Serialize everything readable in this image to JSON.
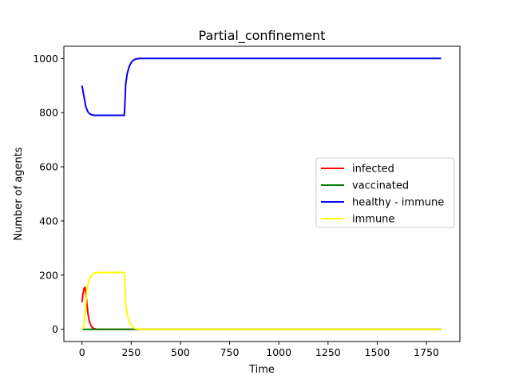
{
  "chart_data": {
    "type": "line",
    "title": "Partial_confinement",
    "xlabel": "Time",
    "ylabel": "Number of agents",
    "xlim": [
      -92,
      1920
    ],
    "ylim": [
      -45,
      1045
    ],
    "xticks": [
      0,
      250,
      500,
      750,
      1000,
      1250,
      1500,
      1750
    ],
    "yticks": [
      0,
      200,
      400,
      600,
      800,
      1000
    ],
    "grid": false,
    "legend": "center-right",
    "series": [
      {
        "name": "infected",
        "color": "#ff0000",
        "x": [
          0,
          5,
          10,
          15,
          20,
          25,
          30,
          35,
          40,
          45,
          50,
          55,
          60,
          70,
          80,
          100,
          150,
          200,
          220,
          250,
          300,
          500,
          1000,
          1500,
          1825
        ],
        "y": [
          100,
          130,
          150,
          155,
          135,
          95,
          60,
          38,
          24,
          15,
          9,
          5,
          3,
          1,
          0,
          0,
          0,
          0,
          0,
          0,
          0,
          0,
          0,
          0,
          0
        ]
      },
      {
        "name": "vaccinated",
        "color": "#008000",
        "x": [
          0,
          1825
        ],
        "y": [
          0,
          0
        ]
      },
      {
        "name": "healthy - immune",
        "color": "#0000ff",
        "x": [
          0,
          10,
          20,
          30,
          40,
          50,
          60,
          80,
          100,
          150,
          200,
          215,
          218,
          222,
          230,
          240,
          250,
          260,
          270,
          280,
          300,
          500,
          1000,
          1500,
          1825
        ],
        "y": [
          900,
          860,
          820,
          803,
          795,
          792,
          790,
          790,
          790,
          790,
          790,
          790,
          830,
          905,
          945,
          970,
          985,
          993,
          997,
          999,
          1000,
          1000,
          1000,
          1000,
          1000
        ]
      },
      {
        "name": "immune",
        "color": "#ffff00",
        "x": [
          0,
          10,
          15,
          20,
          25,
          30,
          40,
          50,
          60,
          70,
          80,
          100,
          150,
          200,
          215,
          218,
          222,
          230,
          240,
          250,
          260,
          270,
          280,
          300,
          500,
          1000,
          1500,
          1825
        ],
        "y": [
          0,
          10,
          50,
          100,
          140,
          165,
          190,
          200,
          206,
          209,
          210,
          210,
          210,
          210,
          210,
          170,
          95,
          55,
          30,
          15,
          7,
          3,
          1,
          0,
          0,
          0,
          0,
          0
        ]
      }
    ]
  }
}
